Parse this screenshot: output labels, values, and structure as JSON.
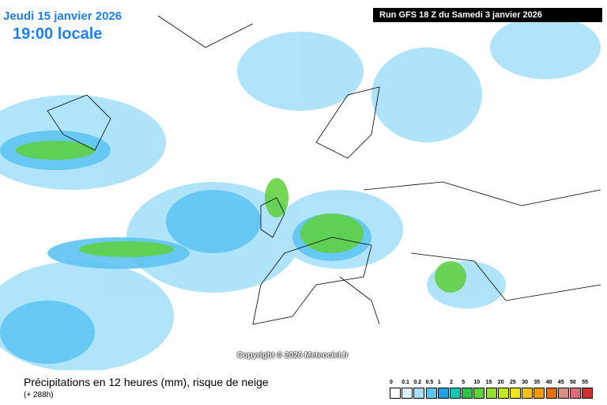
{
  "header": {
    "date": "Jeudi 15 janvier 2026",
    "time": "19:00 locale",
    "run": "Run GFS 18 Z du Samedi 3 janvier 2026"
  },
  "copyright": "Copyright © 2026 Meteociel.fr",
  "footer": {
    "title": "Précipitations en 12 heures (mm), risque de neige",
    "lead": "(+ 288h)"
  },
  "legend": {
    "labels": [
      0,
      0.1,
      0.2,
      0.5,
      1,
      2,
      5,
      10,
      15,
      20,
      25,
      30,
      35,
      40,
      45,
      50,
      55
    ],
    "colors": [
      "#ffffff",
      "#d8f2fc",
      "#a6e1fa",
      "#5ec4f2",
      "#1fa2e8",
      "#16c8b4",
      "#2ec24a",
      "#5ed03a",
      "#96dc2c",
      "#c8e620",
      "#f0e616",
      "#f2c314",
      "#f09a10",
      "#e6700e",
      "#dc9080",
      "#e06a78",
      "#d03030"
    ]
  }
}
